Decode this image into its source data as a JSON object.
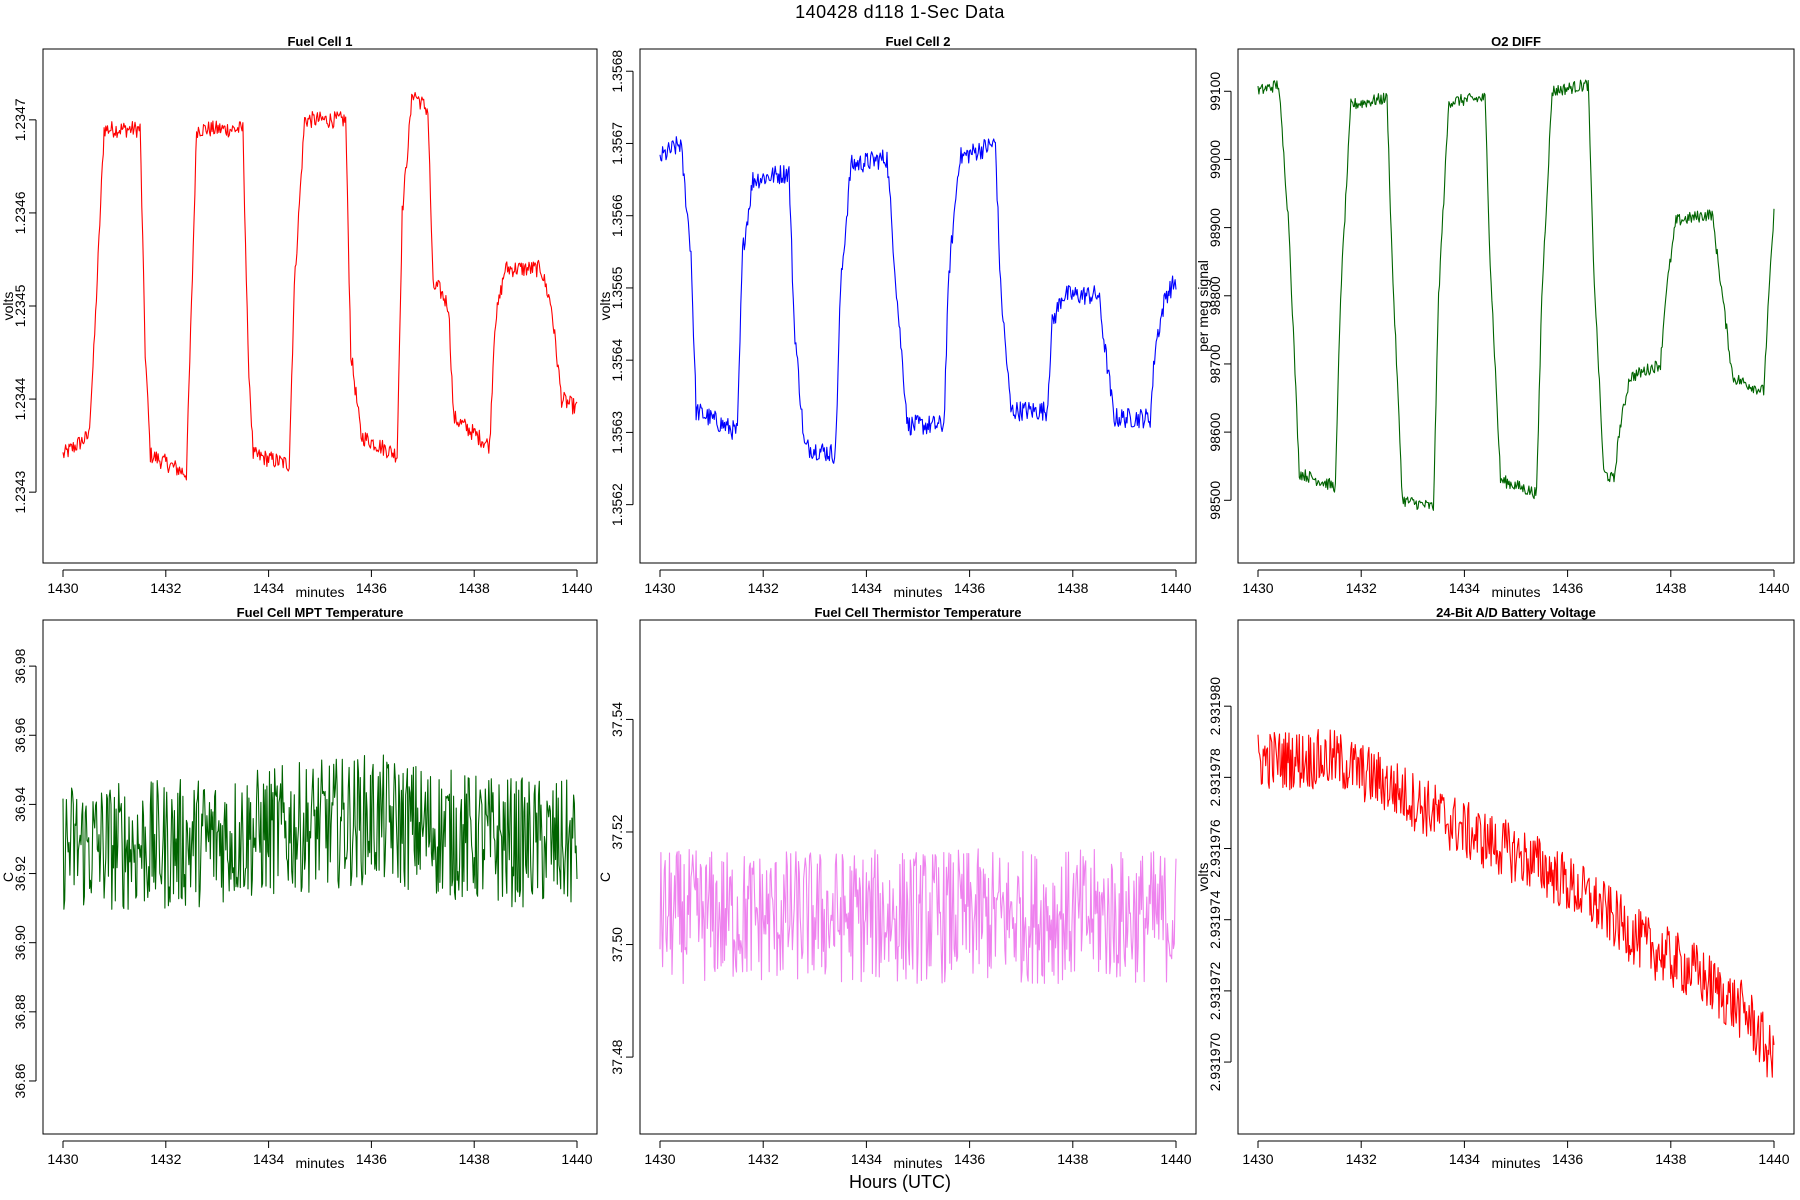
{
  "page": {
    "title": "140428   d118   1-Sec Data",
    "footer_label": "Hours (UTC)"
  },
  "chart_data": [
    {
      "id": "fc1",
      "type": "line",
      "title": "Fuel Cell 1",
      "xlabel": "minutes",
      "ylabel": "volts",
      "color": "#ff0000",
      "xlim": [
        1430,
        1440
      ],
      "ylim": [
        1.23424,
        1.23476
      ],
      "xticks": [
        1430,
        1432,
        1434,
        1436,
        1438,
        1440
      ],
      "yticks": [
        1.2343,
        1.2344,
        1.2345,
        1.2346,
        1.2347
      ],
      "ytick_labels": [
        "1.2343",
        "1.2344",
        "1.2345",
        "1.2346",
        "1.2347"
      ],
      "noise": 9e-06,
      "series": [
        {
          "x": [
            1430.0,
            1430.5,
            1430.6,
            1430.8,
            1431.5,
            1431.6,
            1431.7,
            1432.4,
            1432.5,
            1432.6,
            1433.5,
            1433.6,
            1433.7,
            1434.4,
            1434.5,
            1434.7,
            1435.5,
            1435.6,
            1435.8,
            1436.5,
            1436.6,
            1436.8,
            1437.1,
            1437.2,
            1437.3,
            1437.5,
            1437.6,
            1438.3,
            1438.4,
            1438.6,
            1439.3,
            1439.5,
            1439.7,
            1440.0
          ],
          "y": [
            1.23434,
            1.23436,
            1.23445,
            1.23469,
            1.23469,
            1.23445,
            1.23434,
            1.23432,
            1.2345,
            1.23469,
            1.23469,
            1.23445,
            1.23434,
            1.23433,
            1.23452,
            1.2347,
            1.2347,
            1.23445,
            1.23436,
            1.23434,
            1.2346,
            1.23473,
            1.23471,
            1.23452,
            1.23452,
            1.2345,
            1.23438,
            1.23435,
            1.23448,
            1.23454,
            1.23454,
            1.2345,
            1.2344,
            1.23439
          ]
        }
      ]
    },
    {
      "id": "fc2",
      "type": "line",
      "title": "Fuel Cell 2",
      "xlabel": "minutes",
      "ylabel": "volts",
      "color": "#0000ff",
      "xlim": [
        1430,
        1440
      ],
      "ylim": [
        1.35614,
        1.35681
      ],
      "xticks": [
        1430,
        1432,
        1434,
        1436,
        1438,
        1440
      ],
      "yticks": [
        1.3562,
        1.3563,
        1.3564,
        1.3565,
        1.3566,
        1.3567,
        1.3568
      ],
      "ytick_labels": [
        "1.3562",
        "1.3563",
        "1.3564",
        "1.3565",
        "1.3566",
        "1.3567",
        "1.3568"
      ],
      "noise": 1.4e-05,
      "series": [
        {
          "x": [
            1430.0,
            1430.4,
            1430.6,
            1430.7,
            1431.5,
            1431.6,
            1431.8,
            1432.5,
            1432.6,
            1432.8,
            1433.4,
            1433.5,
            1433.7,
            1434.4,
            1434.6,
            1434.8,
            1435.5,
            1435.6,
            1435.8,
            1436.5,
            1436.6,
            1436.8,
            1437.5,
            1437.6,
            1437.8,
            1438.5,
            1438.6,
            1438.8,
            1439.5,
            1439.6,
            1439.8,
            1440.0
          ],
          "y": [
            1.35668,
            1.3567,
            1.35655,
            1.35633,
            1.3563,
            1.35655,
            1.35665,
            1.35666,
            1.35645,
            1.35628,
            1.35627,
            1.3565,
            1.35667,
            1.35668,
            1.35648,
            1.35631,
            1.35631,
            1.35652,
            1.35668,
            1.3567,
            1.3565,
            1.35633,
            1.35633,
            1.35645,
            1.35649,
            1.35649,
            1.35643,
            1.35632,
            1.35632,
            1.35642,
            1.35649,
            1.35651
          ]
        }
      ]
    },
    {
      "id": "o2",
      "type": "line",
      "title": "O2 DIFF",
      "xlabel": "minutes",
      "ylabel": "per meg signal",
      "color": "#006400",
      "xlim": [
        1430,
        1440
      ],
      "ylim": [
        98430,
        99140
      ],
      "xticks": [
        1430,
        1432,
        1434,
        1436,
        1438,
        1440
      ],
      "yticks": [
        98500,
        98600,
        98700,
        98800,
        98900,
        99000,
        99100
      ],
      "ytick_labels": [
        "98500",
        "98600",
        "98700",
        "98800",
        "98900",
        "99000",
        "99100"
      ],
      "noise": 9,
      "series": [
        {
          "x": [
            1430.0,
            1430.4,
            1430.6,
            1430.8,
            1431.5,
            1431.6,
            1431.8,
            1432.5,
            1432.6,
            1432.8,
            1433.4,
            1433.5,
            1433.7,
            1434.4,
            1434.5,
            1434.7,
            1435.4,
            1435.5,
            1435.7,
            1436.4,
            1436.5,
            1436.7,
            1436.9,
            1437.0,
            1437.2,
            1437.8,
            1437.9,
            1438.1,
            1438.8,
            1439.0,
            1439.2,
            1439.8,
            1439.9,
            1440.0
          ],
          "y": [
            99100,
            99110,
            98900,
            98540,
            98520,
            98800,
            99080,
            99090,
            98850,
            98500,
            98490,
            98800,
            99085,
            99090,
            98850,
            98530,
            98510,
            98800,
            99100,
            99110,
            98850,
            98540,
            98530,
            98600,
            98680,
            98700,
            98800,
            98910,
            98920,
            98800,
            98680,
            98660,
            98800,
            98920
          ]
        }
      ]
    },
    {
      "id": "mpt",
      "type": "line",
      "title": "Fuel Cell MPT Temperature",
      "xlabel": "minutes",
      "ylabel": "C",
      "color": "#006400",
      "xlim": [
        1430,
        1440
      ],
      "ylim": [
        36.849,
        36.989
      ],
      "xticks": [
        1430,
        1432,
        1434,
        1436,
        1438,
        1440
      ],
      "yticks": [
        36.86,
        36.88,
        36.9,
        36.92,
        36.94,
        36.96,
        36.98
      ],
      "ytick_labels": [
        "36.86",
        "36.88",
        "36.90",
        "36.92",
        "36.94",
        "36.96",
        "36.98"
      ],
      "noise": 0.019,
      "series": [
        {
          "x": [
            1430.0,
            1432.0,
            1434.0,
            1436.0,
            1438.0,
            1440.0
          ],
          "y": [
            36.928,
            36.928,
            36.932,
            36.936,
            36.93,
            36.928
          ]
        }
      ]
    },
    {
      "id": "therm",
      "type": "line",
      "title": "Fuel Cell Thermistor Temperature",
      "xlabel": "minutes",
      "ylabel": "C",
      "color": "#ee82ee",
      "xlim": [
        1430,
        1440
      ],
      "ylim": [
        37.469,
        37.555
      ],
      "xticks": [
        1430,
        1432,
        1434,
        1436,
        1438,
        1440
      ],
      "yticks": [
        37.48,
        37.5,
        37.52,
        37.54
      ],
      "ytick_labels": [
        "37.48",
        "37.50",
        "37.52",
        "37.54"
      ],
      "noise": 0.012,
      "series": [
        {
          "x": [
            1430.0,
            1435.0,
            1440.0
          ],
          "y": [
            37.505,
            37.505,
            37.505
          ]
        }
      ]
    },
    {
      "id": "batt",
      "type": "line",
      "title": "24-Bit A/D Battery Voltage",
      "xlabel": "minutes",
      "ylabel": "volts",
      "color": "#ff0000",
      "xlim": [
        1430,
        1440
      ],
      "ylim": [
        2.9319684,
        2.931982
      ],
      "xticks": [
        1430,
        1432,
        1434,
        1436,
        1438,
        1440
      ],
      "yticks": [
        2.93197,
        2.931972,
        2.931974,
        2.931976,
        2.931978,
        2.93198
      ],
      "ytick_labels": [
        "2.931970",
        "2.931972",
        "2.931974",
        "2.931976",
        "2.931978",
        "2.931980"
      ],
      "noise": 8.5e-07,
      "series": [
        {
          "x": [
            1430.0,
            1431.5,
            1432.5,
            1434.0,
            1435.5,
            1436.5,
            1437.5,
            1438.5,
            1439.5,
            1440.0
          ],
          "y": [
            2.9319785,
            2.9319785,
            2.9319778,
            2.9319765,
            2.9319755,
            2.9319745,
            2.9319733,
            2.9319725,
            2.9319713,
            2.93197
          ]
        }
      ]
    }
  ]
}
